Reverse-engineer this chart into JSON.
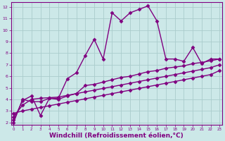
{
  "bg_color": "#cce8e8",
  "grid_color": "#aacccc",
  "line_color": "#800080",
  "marker": "D",
  "markersize": 2.5,
  "linewidth": 1.0,
  "xlabel": "Windchill (Refroidissement éolien,°C)",
  "xlabel_fontsize": 6.5,
  "ylabel_values": [
    2,
    3,
    4,
    5,
    6,
    7,
    8,
    9,
    10,
    11,
    12
  ],
  "xlabel_values": [
    0,
    1,
    2,
    3,
    4,
    5,
    6,
    7,
    8,
    9,
    10,
    11,
    12,
    13,
    14,
    15,
    16,
    17,
    18,
    19,
    20,
    21,
    22,
    23
  ],
  "xlim": [
    -0.3,
    23.3
  ],
  "ylim": [
    1.8,
    12.4
  ],
  "series1": [
    [
      0,
      2.0
    ],
    [
      1,
      4.0
    ],
    [
      2,
      3.8
    ],
    [
      3,
      3.8
    ],
    [
      4,
      4.1
    ],
    [
      5,
      4.1
    ],
    [
      6,
      5.8
    ],
    [
      7,
      6.3
    ],
    [
      8,
      7.8
    ],
    [
      9,
      9.2
    ],
    [
      10,
      7.5
    ],
    [
      11,
      11.5
    ],
    [
      12,
      10.8
    ],
    [
      13,
      11.5
    ],
    [
      14,
      11.8
    ],
    [
      15,
      12.1
    ],
    [
      16,
      10.8
    ],
    [
      17,
      7.5
    ],
    [
      18,
      7.5
    ],
    [
      19,
      7.3
    ],
    [
      20,
      8.5
    ],
    [
      21,
      7.1
    ],
    [
      22,
      7.5
    ],
    [
      23,
      7.5
    ]
  ],
  "series2": [
    [
      0,
      2.2
    ],
    [
      1,
      3.9
    ],
    [
      2,
      4.3
    ],
    [
      3,
      2.6
    ],
    [
      4,
      4.1
    ],
    [
      5,
      4.0
    ],
    [
      6,
      4.3
    ],
    [
      7,
      4.5
    ],
    [
      8,
      5.2
    ],
    [
      9,
      5.3
    ],
    [
      10,
      5.5
    ],
    [
      11,
      5.7
    ],
    [
      12,
      5.9
    ],
    [
      13,
      6.0
    ],
    [
      14,
      6.2
    ],
    [
      15,
      6.4
    ],
    [
      16,
      6.5
    ],
    [
      17,
      6.7
    ],
    [
      18,
      6.8
    ],
    [
      19,
      6.9
    ],
    [
      20,
      7.1
    ],
    [
      21,
      7.2
    ],
    [
      22,
      7.35
    ],
    [
      23,
      7.5
    ]
  ],
  "series3": [
    [
      0,
      2.5
    ],
    [
      1,
      3.5
    ],
    [
      2,
      4.0
    ],
    [
      3,
      4.1
    ],
    [
      4,
      4.15
    ],
    [
      5,
      4.2
    ],
    [
      6,
      4.35
    ],
    [
      7,
      4.5
    ],
    [
      8,
      4.65
    ],
    [
      9,
      4.8
    ],
    [
      10,
      4.95
    ],
    [
      11,
      5.1
    ],
    [
      12,
      5.25
    ],
    [
      13,
      5.4
    ],
    [
      14,
      5.55
    ],
    [
      15,
      5.7
    ],
    [
      16,
      5.85
    ],
    [
      17,
      6.0
    ],
    [
      18,
      6.15
    ],
    [
      19,
      6.3
    ],
    [
      20,
      6.45
    ],
    [
      21,
      6.6
    ],
    [
      22,
      6.75
    ],
    [
      23,
      7.0
    ]
  ],
  "series4": [
    [
      0,
      2.8
    ],
    [
      1,
      3.0
    ],
    [
      2,
      3.15
    ],
    [
      3,
      3.3
    ],
    [
      4,
      3.45
    ],
    [
      5,
      3.6
    ],
    [
      6,
      3.75
    ],
    [
      7,
      3.9
    ],
    [
      8,
      4.05
    ],
    [
      9,
      4.2
    ],
    [
      10,
      4.35
    ],
    [
      11,
      4.5
    ],
    [
      12,
      4.65
    ],
    [
      13,
      4.8
    ],
    [
      14,
      4.95
    ],
    [
      15,
      5.1
    ],
    [
      16,
      5.25
    ],
    [
      17,
      5.4
    ],
    [
      18,
      5.55
    ],
    [
      19,
      5.7
    ],
    [
      20,
      5.85
    ],
    [
      21,
      6.0
    ],
    [
      22,
      6.15
    ],
    [
      23,
      6.5
    ]
  ]
}
